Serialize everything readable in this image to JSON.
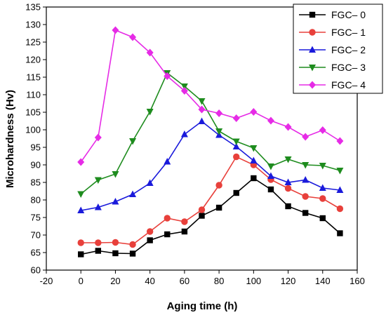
{
  "chart_data": {
    "type": "line",
    "title": "",
    "xlabel": "Aging time (h)",
    "ylabel": "Microhardness (Hv)",
    "xlim": [
      -20,
      160
    ],
    "ylim": [
      60,
      135
    ],
    "xticks": [
      -20,
      0,
      20,
      40,
      60,
      80,
      100,
      120,
      140,
      160
    ],
    "yticks": [
      60,
      65,
      70,
      75,
      80,
      85,
      90,
      95,
      100,
      105,
      110,
      115,
      120,
      125,
      130,
      135
    ],
    "grid": false,
    "legend_position": "top-right",
    "x": [
      0,
      10,
      20,
      30,
      40,
      50,
      60,
      70,
      80,
      90,
      100,
      110,
      120,
      130,
      140,
      150
    ],
    "series": [
      {
        "name": "FGC– 0",
        "color": "#000000",
        "marker": "square",
        "values": [
          64.5,
          65.5,
          64.8,
          64.7,
          68.5,
          70.2,
          71.0,
          75.5,
          77.8,
          82.0,
          86.2,
          83.0,
          78.2,
          76.3,
          74.8,
          70.5
        ]
      },
      {
        "name": "FGC– 1",
        "color": "#e8403b",
        "marker": "circle",
        "values": [
          67.8,
          67.8,
          67.9,
          67.3,
          71.0,
          74.8,
          73.8,
          77.2,
          84.2,
          92.3,
          90.0,
          85.8,
          83.3,
          81.0,
          80.4,
          77.5
        ]
      },
      {
        "name": "FGC– 2",
        "color": "#1a1adb",
        "marker": "triangle-up",
        "values": [
          77.0,
          77.9,
          79.5,
          81.6,
          84.8,
          90.9,
          98.7,
          102.4,
          98.5,
          95.2,
          91.2,
          86.8,
          85.0,
          85.7,
          83.4,
          82.8
        ]
      },
      {
        "name": "FGC– 3",
        "color": "#1e8c1e",
        "marker": "triangle-down",
        "values": [
          81.7,
          85.7,
          87.4,
          96.8,
          105.2,
          116.2,
          112.4,
          108.2,
          99.6,
          96.7,
          94.8,
          89.6,
          91.6,
          90.0,
          89.8,
          88.4
        ]
      },
      {
        "name": "FGC– 4",
        "color": "#e62be6",
        "marker": "diamond",
        "values": [
          90.8,
          97.8,
          128.4,
          126.4,
          122.0,
          115.3,
          111.1,
          105.8,
          104.7,
          103.3,
          105.1,
          102.6,
          100.8,
          98.0,
          99.9,
          96.8
        ]
      }
    ]
  }
}
